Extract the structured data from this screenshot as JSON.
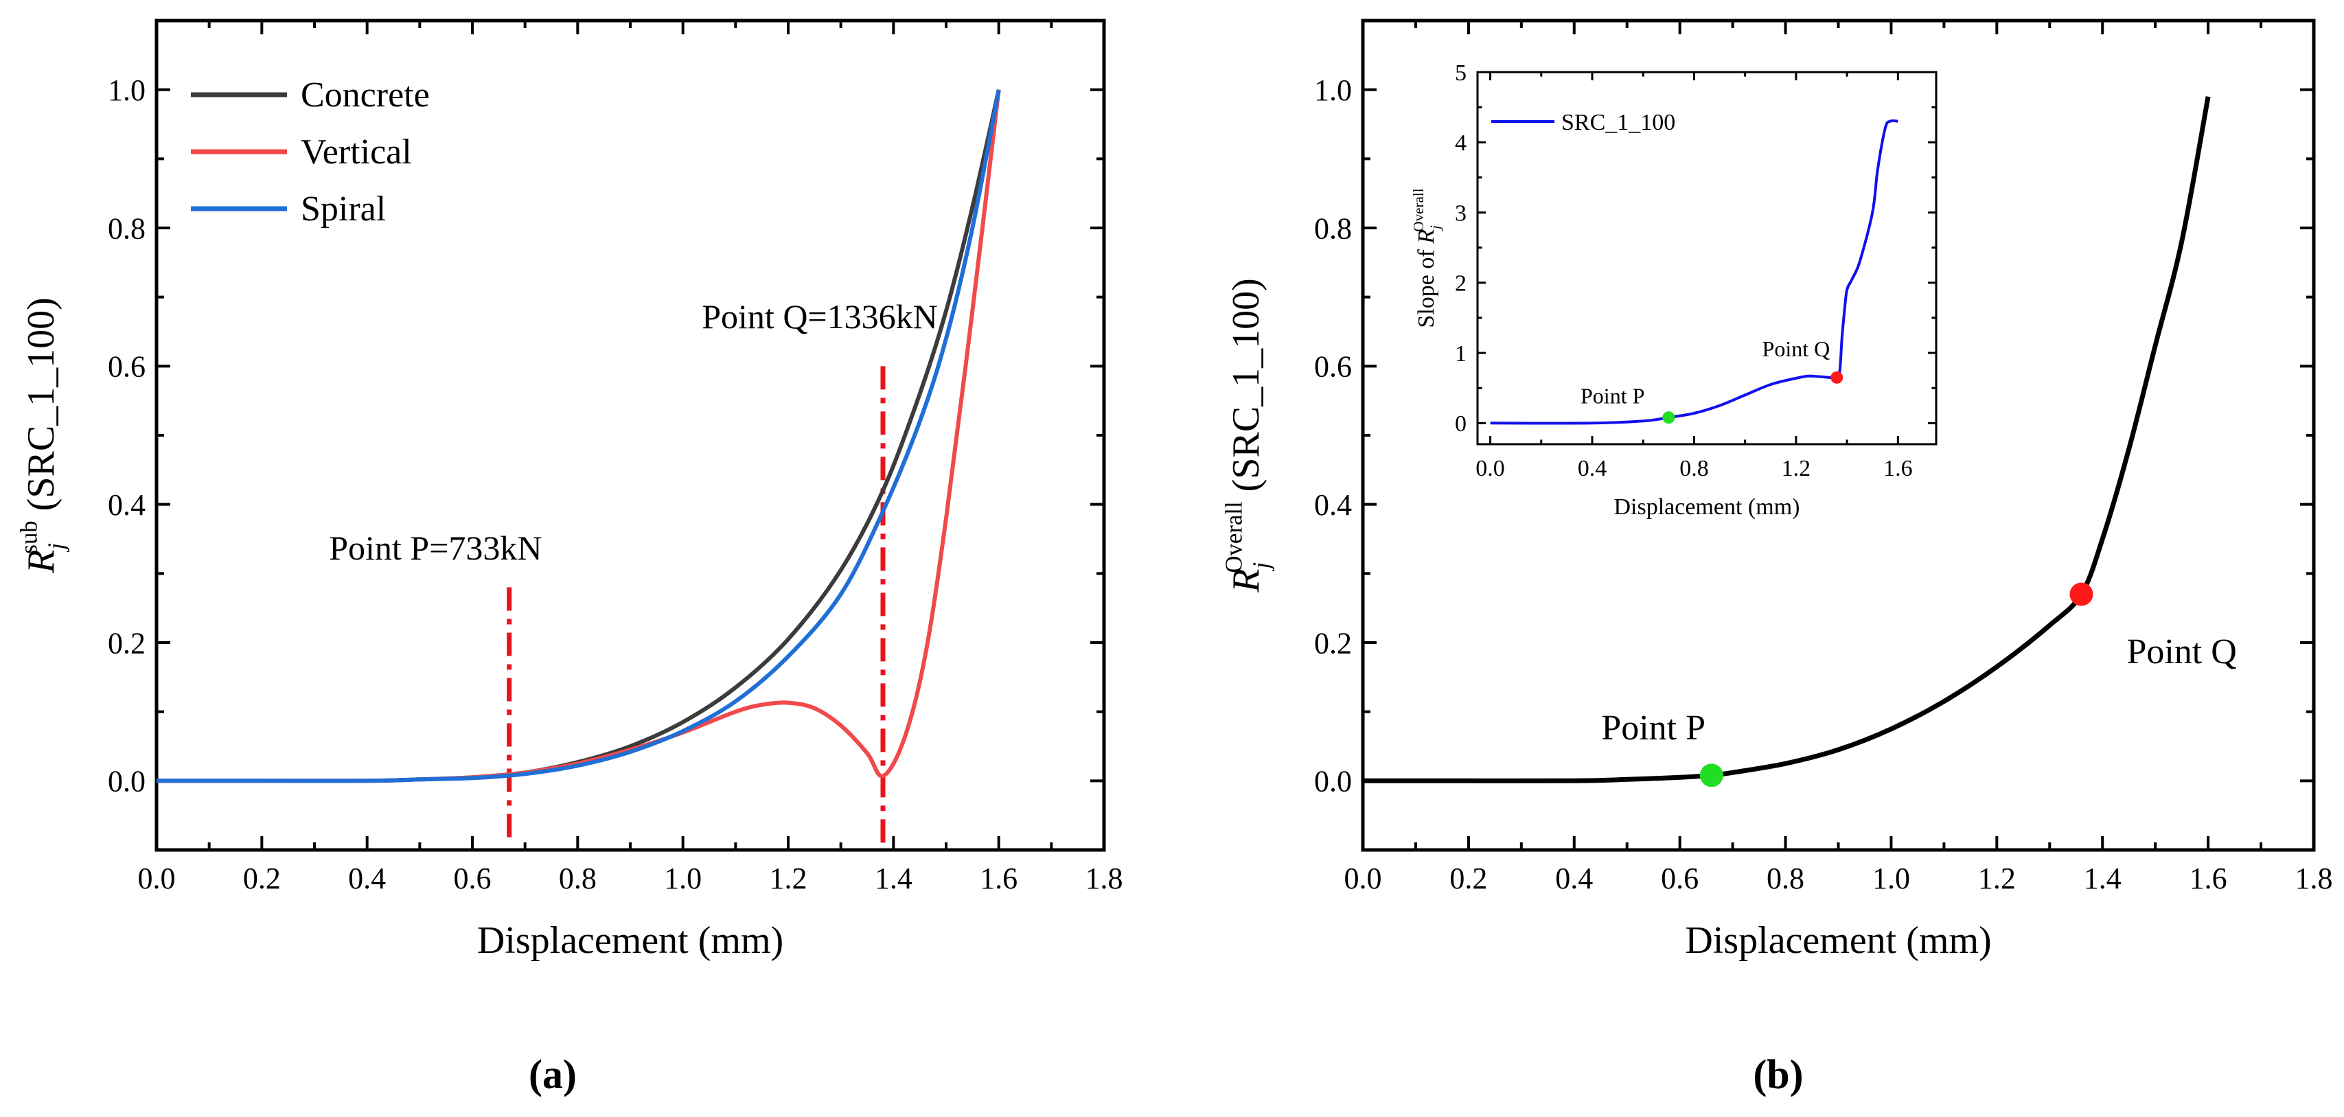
{
  "chart_data": [
    {
      "panel_label": "(a)",
      "type": "line",
      "xlabel": "Displacement (mm)",
      "ylabel": {
        "main": "R",
        "sub": "j",
        "sup": "sub",
        "rest": " (SRC_1_100)"
      },
      "xlim": [
        0.0,
        1.8
      ],
      "ylim": [
        -0.1,
        1.1
      ],
      "xticks": [
        0.0,
        0.2,
        0.4,
        0.6,
        0.8,
        1.0,
        1.2,
        1.4,
        1.6,
        1.8
      ],
      "yticks": [
        0.0,
        0.2,
        0.4,
        0.6,
        0.8,
        1.0
      ],
      "grid": false,
      "legend_position": "top-left",
      "series": [
        {
          "name": "Concrete",
          "color": "#3c3c3c",
          "x": [
            0.0,
            0.2,
            0.4,
            0.5,
            0.6,
            0.7,
            0.8,
            0.9,
            1.0,
            1.1,
            1.2,
            1.3,
            1.38,
            1.45,
            1.5,
            1.55,
            1.6
          ],
          "y": [
            0.0,
            0.0,
            0.0,
            0.002,
            0.005,
            0.012,
            0.027,
            0.05,
            0.085,
            0.135,
            0.205,
            0.305,
            0.42,
            0.56,
            0.68,
            0.83,
            1.0
          ]
        },
        {
          "name": "Vertical",
          "color": "#f04a4a",
          "x": [
            0.0,
            0.2,
            0.4,
            0.5,
            0.6,
            0.7,
            0.8,
            0.9,
            1.0,
            1.1,
            1.15,
            1.2,
            1.25,
            1.3,
            1.35,
            1.38,
            1.42,
            1.46,
            1.5,
            1.55,
            1.6
          ],
          "y": [
            0.0,
            0.0,
            0.0,
            0.002,
            0.005,
            0.012,
            0.025,
            0.045,
            0.07,
            0.1,
            0.11,
            0.113,
            0.105,
            0.08,
            0.04,
            0.007,
            0.06,
            0.18,
            0.38,
            0.68,
            1.0
          ]
        },
        {
          "name": "Spiral",
          "color": "#1f6fd6",
          "x": [
            0.0,
            0.2,
            0.4,
            0.5,
            0.6,
            0.7,
            0.8,
            0.9,
            1.0,
            1.1,
            1.2,
            1.3,
            1.38,
            1.45,
            1.5,
            1.55,
            1.6
          ],
          "y": [
            0.0,
            0.0,
            0.0,
            0.002,
            0.004,
            0.01,
            0.022,
            0.042,
            0.072,
            0.115,
            0.18,
            0.27,
            0.39,
            0.52,
            0.64,
            0.8,
            1.0
          ]
        }
      ],
      "annotations": [
        {
          "text": "Point P=733kN",
          "x": 0.67,
          "y_top": 0.28,
          "y_bottom": -0.09,
          "color": "#e8141c"
        },
        {
          "text": "Point Q=1336kN",
          "x": 1.38,
          "y_top": 0.6,
          "y_bottom": -0.09,
          "color": "#e8141c"
        }
      ]
    },
    {
      "panel_label": "(b)",
      "type": "line",
      "xlabel": "Displacement (mm)",
      "ylabel": {
        "main": "R",
        "sub": "j",
        "sup": "Overall",
        "rest": " (SRC_1_100)"
      },
      "xlim": [
        0.0,
        1.8
      ],
      "ylim": [
        -0.1,
        1.1
      ],
      "xticks": [
        0.0,
        0.2,
        0.4,
        0.6,
        0.8,
        1.0,
        1.2,
        1.4,
        1.6,
        1.8
      ],
      "yticks": [
        0.0,
        0.2,
        0.4,
        0.6,
        0.8,
        1.0
      ],
      "grid": false,
      "series": [
        {
          "name": "",
          "color": "#000000",
          "x": [
            0.0,
            0.2,
            0.4,
            0.5,
            0.6,
            0.66,
            0.7,
            0.8,
            0.9,
            1.0,
            1.1,
            1.2,
            1.3,
            1.36,
            1.4,
            1.45,
            1.5,
            1.55,
            1.6
          ],
          "y": [
            0.0,
            0.0,
            0.0,
            0.002,
            0.005,
            0.008,
            0.012,
            0.025,
            0.045,
            0.075,
            0.115,
            0.165,
            0.225,
            0.27,
            0.35,
            0.48,
            0.63,
            0.78,
            0.99
          ]
        }
      ],
      "points": [
        {
          "label": "Point P",
          "x": 0.66,
          "y": 0.008,
          "color": "#22dd22"
        },
        {
          "label": "Point Q",
          "x": 1.36,
          "y": 0.27,
          "color": "#ff1a1a"
        }
      ],
      "inset": {
        "type": "line",
        "xlabel": "Displacement (mm)",
        "ylabel": {
          "main": "Slope of R",
          "sub": "j",
          "sup": "Overall"
        },
        "xlim": [
          -0.05,
          1.75
        ],
        "ylim": [
          -0.3,
          5.0
        ],
        "xticks": [
          0.0,
          0.4,
          0.8,
          1.2,
          1.6
        ],
        "yticks": [
          0,
          1,
          2,
          3,
          4,
          5
        ],
        "legend_position": "top-left",
        "series": [
          {
            "name": "SRC_1_100",
            "color": "#1010ee",
            "x": [
              0.0,
              0.4,
              0.6,
              0.7,
              0.8,
              0.9,
              1.0,
              1.1,
              1.2,
              1.25,
              1.3,
              1.35,
              1.37,
              1.38,
              1.39,
              1.4,
              1.42,
              1.45,
              1.5,
              1.52,
              1.55,
              1.57,
              1.6
            ],
            "y": [
              0.0,
              0.0,
              0.03,
              0.08,
              0.14,
              0.25,
              0.4,
              0.55,
              0.64,
              0.67,
              0.66,
              0.65,
              0.7,
              1.2,
              1.6,
              1.9,
              2.05,
              2.3,
              3.0,
              3.6,
              4.2,
              4.3,
              4.3
            ]
          }
        ],
        "points": [
          {
            "label": "Point P",
            "x": 0.7,
            "y": 0.08,
            "color": "#22dd22"
          },
          {
            "label": "Point Q",
            "x": 1.36,
            "y": 0.65,
            "color": "#ff1a1a"
          }
        ]
      }
    }
  ]
}
